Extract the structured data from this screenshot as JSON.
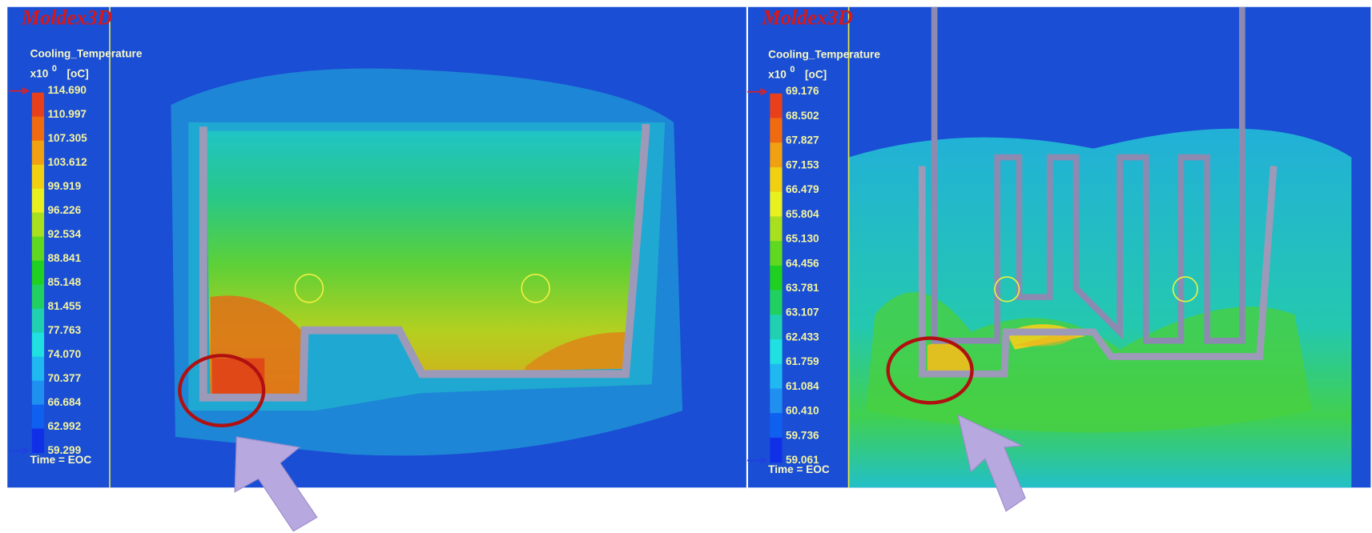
{
  "panels": [
    {
      "brand": "Moldex3D",
      "legend": {
        "title": "Cooling_Temperature",
        "scale": "x10",
        "exponent": "0",
        "unit": "[oC]",
        "labels": [
          "114.690",
          "110.997",
          "107.305",
          "103.612",
          "99.919",
          "96.226",
          "92.534",
          "88.841",
          "85.148",
          "81.455",
          "77.763",
          "74.070",
          "70.377",
          "66.684",
          "62.992",
          "59.299"
        ],
        "colors": [
          "#e8401a",
          "#f06a10",
          "#f0a010",
          "#f0d010",
          "#e8f020",
          "#a8e020",
          "#60d820",
          "#20d020",
          "#20d060",
          "#20d0b0",
          "#20e0e0",
          "#20b8f0",
          "#2090f0",
          "#1060f0",
          "#1030e8"
        ]
      },
      "time": "Time = EOC"
    },
    {
      "brand": "Moldex3D",
      "legend": {
        "title": "Cooling_Temperature",
        "scale": "x10",
        "exponent": "0",
        "unit": "[oC]",
        "labels": [
          "69.176",
          "68.502",
          "67.827",
          "67.153",
          "66.479",
          "65.804",
          "65.130",
          "64.456",
          "63.781",
          "63.107",
          "62.433",
          "61.759",
          "61.084",
          "60.410",
          "59.736",
          "59.061"
        ],
        "colors": [
          "#e8401a",
          "#f06a10",
          "#f0a010",
          "#f0d010",
          "#e8f020",
          "#a8e020",
          "#60d820",
          "#20d020",
          "#20d060",
          "#20d0b0",
          "#20e0e0",
          "#20b8f0",
          "#2090f0",
          "#1060f0",
          "#1030e8"
        ]
      },
      "time": "Time = EOC"
    }
  ]
}
